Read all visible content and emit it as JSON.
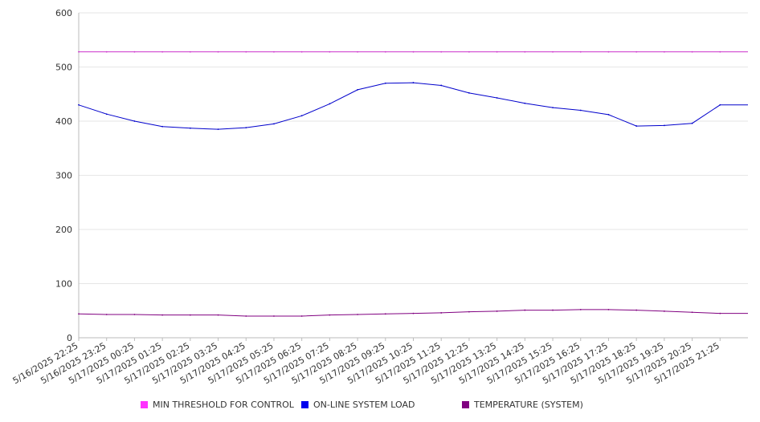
{
  "chart_data": {
    "type": "line",
    "ylim": [
      0,
      600
    ],
    "yticks": [
      0,
      100,
      200,
      300,
      400,
      500,
      600
    ],
    "grid": true,
    "legend_position": "bottom",
    "x": [
      "5/16/2025 22:25",
      "5/16/2025 23:25",
      "5/17/2025 00:25",
      "5/17/2025 01:25",
      "5/17/2025 02:25",
      "5/17/2025 03:25",
      "5/17/2025 04:25",
      "5/17/2025 05:25",
      "5/17/2025 06:25",
      "5/17/2025 07:25",
      "5/17/2025 08:25",
      "5/17/2025 09:25",
      "5/17/2025 10:25",
      "5/17/2025 11:25",
      "5/17/2025 12:25",
      "5/17/2025 13:25",
      "5/17/2025 14:25",
      "5/17/2025 15:25",
      "5/17/2025 16:25",
      "5/17/2025 17:25",
      "5/17/2025 18:25",
      "5/17/2025 19:25",
      "5/17/2025 20:25",
      "5/17/2025 21:25"
    ],
    "series": [
      {
        "name": "MIN THRESHOLD FOR CONTROL",
        "color": "#cc33cc",
        "values": [
          528,
          528,
          528,
          528,
          528,
          528,
          528,
          528,
          528,
          528,
          528,
          528,
          528,
          528,
          528,
          528,
          528,
          528,
          528,
          528,
          528,
          528,
          528,
          528
        ]
      },
      {
        "name": "ON-LINE SYSTEM LOAD",
        "color": "#0000cc",
        "values": [
          430,
          413,
          400,
          390,
          387,
          385,
          388,
          395,
          410,
          432,
          458,
          470,
          471,
          466,
          452,
          443,
          433,
          425,
          420,
          412,
          391,
          392,
          396,
          430
        ]
      },
      {
        "name": "TEMPERATURE (SYSTEM)",
        "color": "#800080",
        "values": [
          44,
          43,
          43,
          42,
          42,
          42,
          40,
          40,
          40,
          42,
          43,
          44,
          45,
          46,
          48,
          49,
          51,
          51,
          52,
          52,
          51,
          49,
          47,
          45
        ]
      }
    ]
  }
}
